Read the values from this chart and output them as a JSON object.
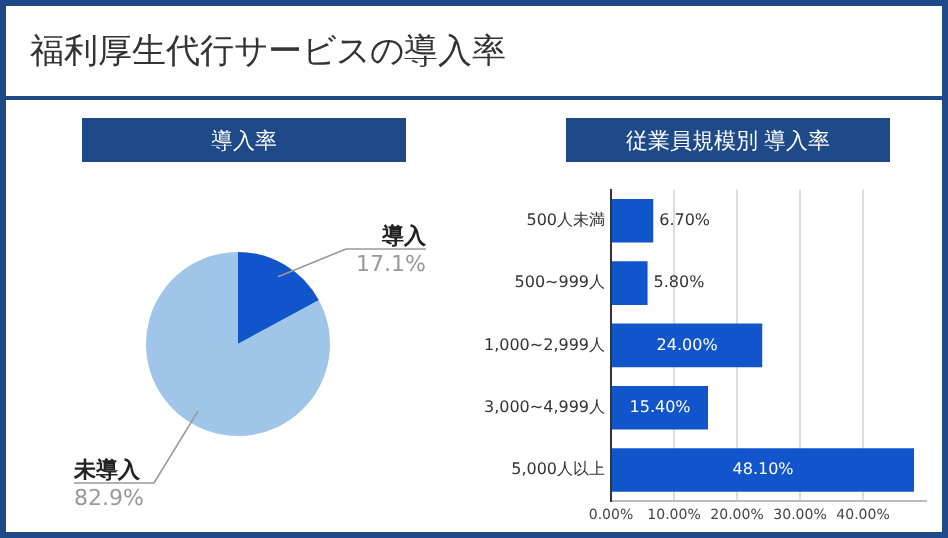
{
  "chart_data": [
    {
      "type": "other",
      "title": "福利厚生代行サービスの導入率"
    },
    {
      "type": "pie",
      "title": "導入率",
      "categories": [
        "導入",
        "未導入"
      ],
      "values": [
        17.1,
        82.9
      ],
      "colors": [
        "#1155cc",
        "#9fc5e8"
      ],
      "value_labels": [
        "17.1%",
        "82.9%"
      ],
      "legend": false
    },
    {
      "type": "bar",
      "orientation": "horizontal",
      "title": "従業員規模別 導入率",
      "categories": [
        "500人未満",
        "500~999人",
        "1,000~2,999人",
        "3,000~4,999人",
        "5,000人以上"
      ],
      "values": [
        6.7,
        5.8,
        24.0,
        15.4,
        48.1
      ],
      "color": "#1155cc",
      "value_labels": [
        "6.70%",
        "5.80%",
        "24.00%",
        "15.40%",
        "48.10%"
      ],
      "xlim": [
        0,
        50
      ],
      "xticks": [
        {
          "value": 0,
          "label": "0.00%"
        },
        {
          "value": 10,
          "label": "10.00%"
        },
        {
          "value": 20,
          "label": "20.00%"
        },
        {
          "value": 30,
          "label": "30.00%"
        },
        {
          "value": 40,
          "label": "40.00%"
        }
      ],
      "grid": "x",
      "legend": false
    }
  ]
}
